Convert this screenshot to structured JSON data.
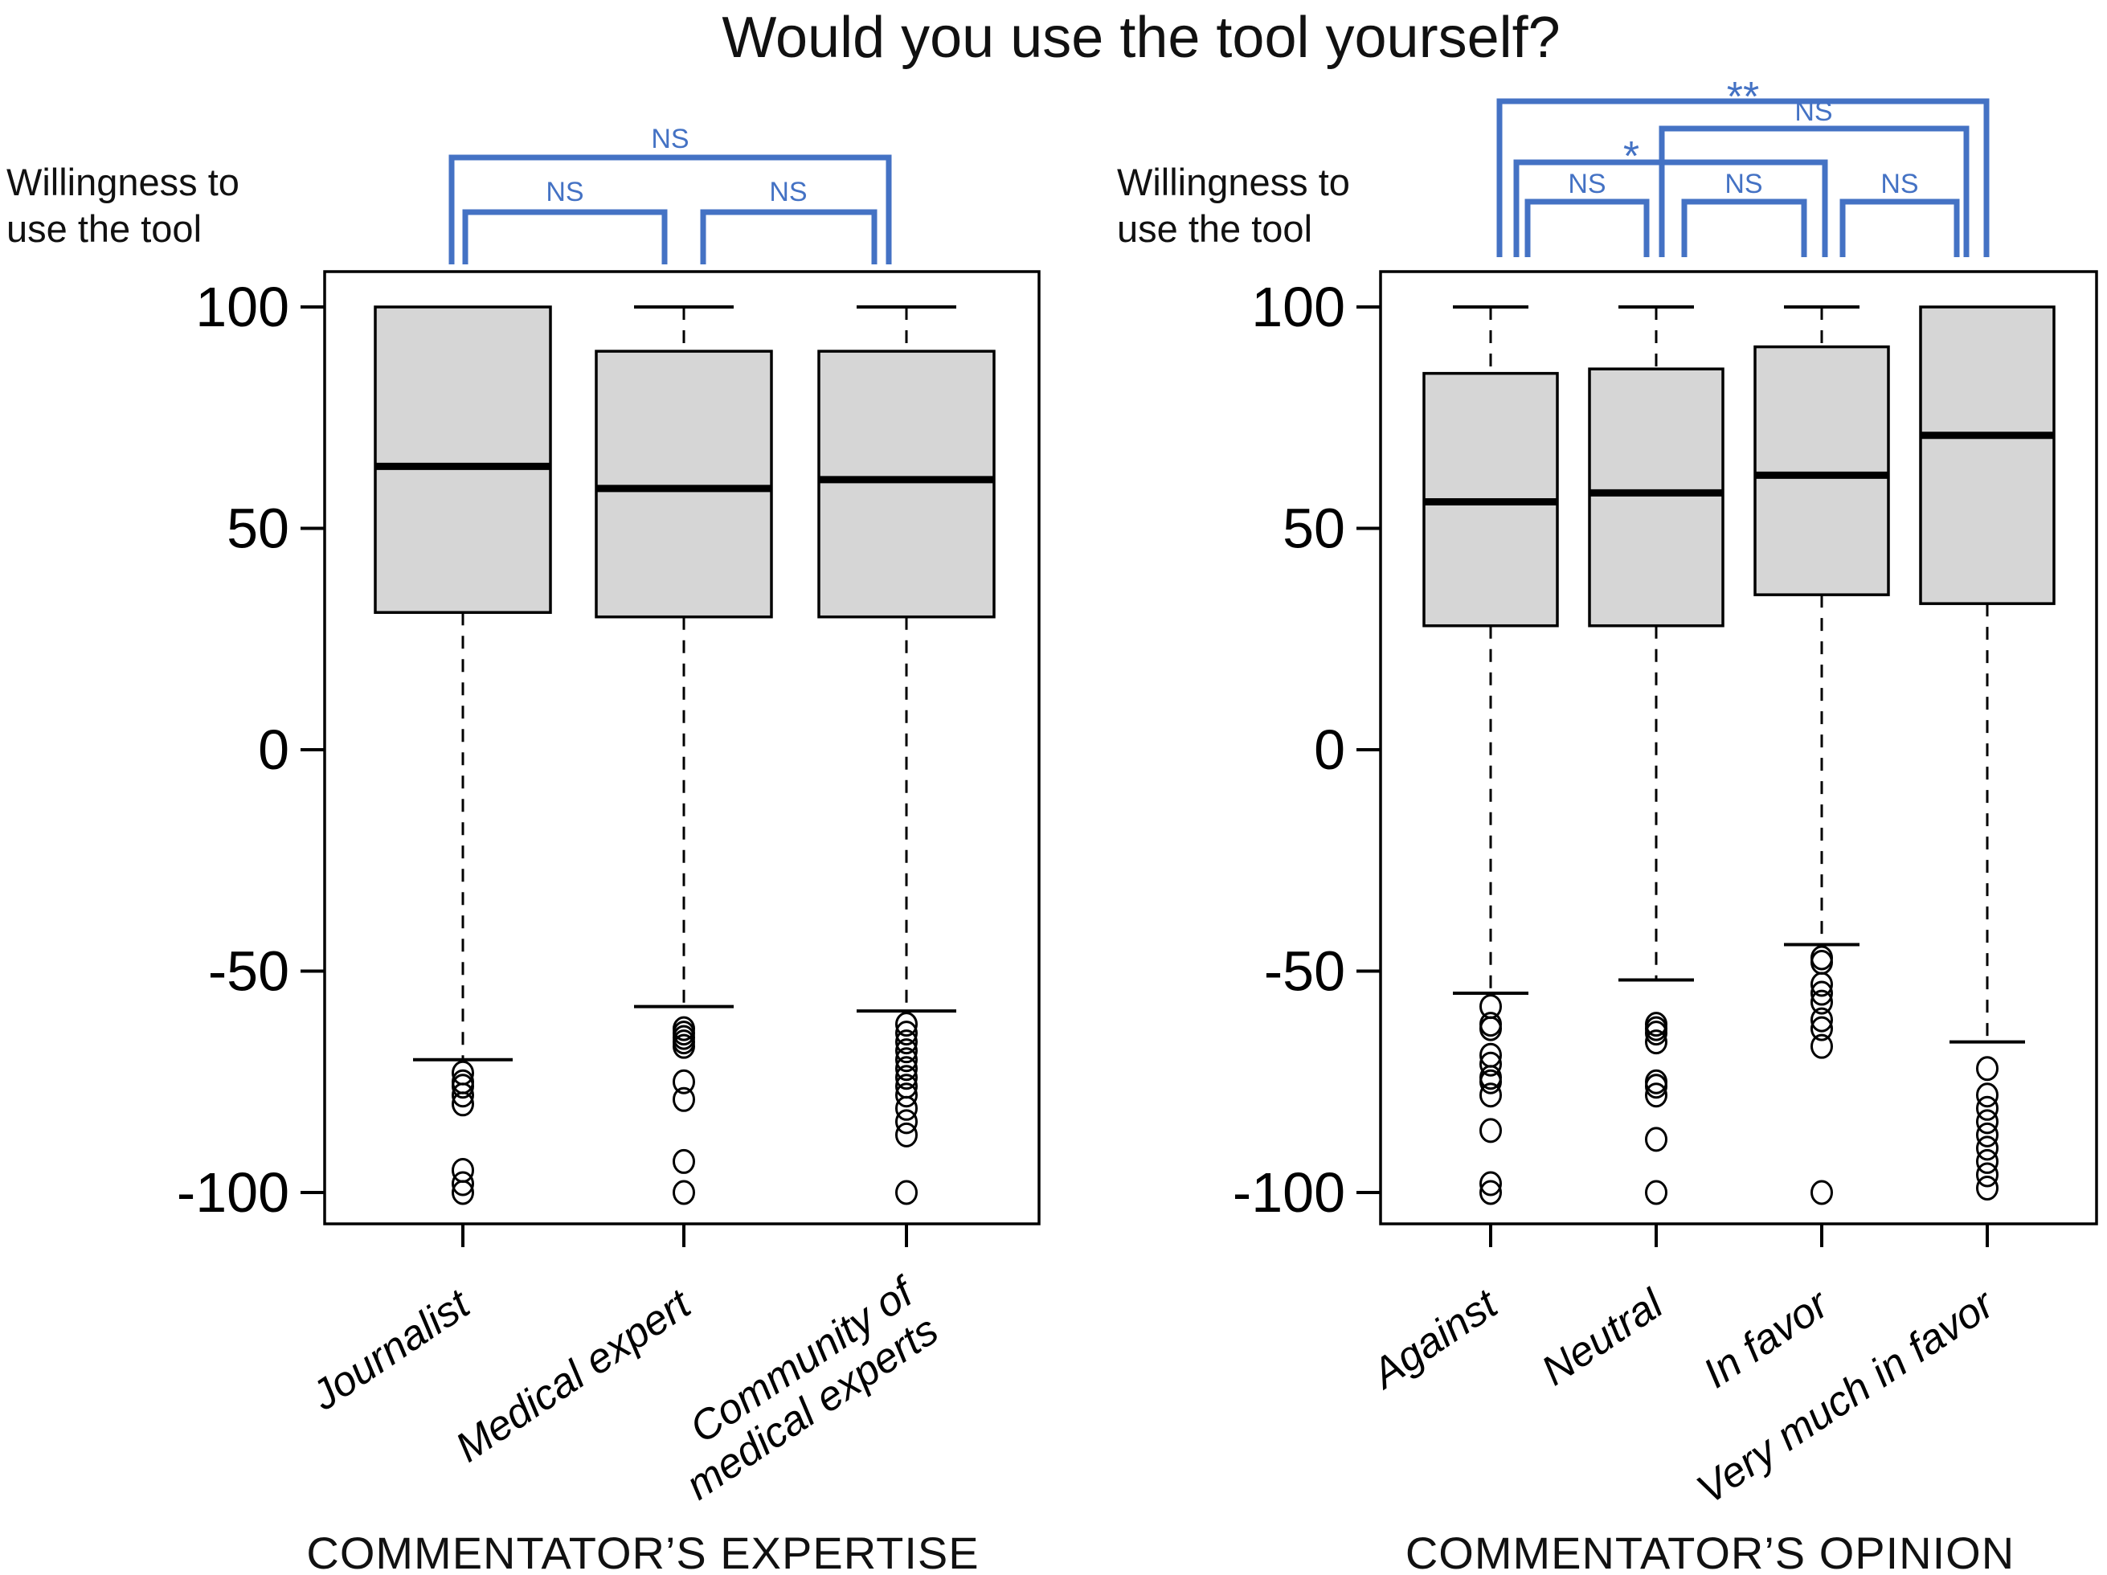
{
  "colors": {
    "bracket_blue": "#4472C4",
    "box_fill": "#D6D6D6",
    "line_black": "#000000"
  },
  "chart_data": {
    "type": "boxplot",
    "title": "Would you use the tool yourself?",
    "y_axis_label": [
      "Willingness to",
      "use the tool"
    ],
    "y_ticks": [
      100,
      50,
      0,
      -50,
      -100
    ],
    "ylim": [
      -107,
      107
    ],
    "grid": false,
    "panels": [
      {
        "id": "expertise",
        "axis_title": "COMMENTATOR’S EXPERTISE",
        "categories": [
          [
            "Journalist"
          ],
          [
            "Medical expert"
          ],
          [
            "Community of",
            "medical experts"
          ]
        ],
        "boxes": [
          {
            "category": "Journalist",
            "q1": 31,
            "median": 64,
            "q3": 100,
            "whisker_low": -70,
            "whisker_high": 100,
            "outliers": [
              -73,
              -75,
              -76,
              -78,
              -80,
              -95,
              -98,
              -100
            ]
          },
          {
            "category": "Medical expert",
            "q1": 30,
            "median": 59,
            "q3": 90,
            "whisker_low": -58,
            "whisker_high": 100,
            "outliers": [
              -63,
              -64,
              -65,
              -66,
              -67,
              -75,
              -79,
              -93,
              -100
            ]
          },
          {
            "category": "Community of medical experts",
            "q1": 30,
            "median": 61,
            "q3": 90,
            "whisker_low": -59,
            "whisker_high": 100,
            "outliers": [
              -62,
              -64,
              -66,
              -68,
              -70,
              -72,
              -74,
              -76,
              -78,
              -81,
              -84,
              -87,
              -100
            ]
          }
        ],
        "significance_brackets": [
          {
            "group_a": "Journalist",
            "group_b": "Community of medical experts",
            "from": 0,
            "to": 2,
            "label": "NS"
          },
          {
            "group_a": "Journalist",
            "group_b": "Medical expert",
            "from": 0,
            "to": 1,
            "label": "NS"
          },
          {
            "group_a": "Medical expert",
            "group_b": "Community of medical experts",
            "from": 1,
            "to": 2,
            "label": "NS"
          }
        ]
      },
      {
        "id": "opinion",
        "axis_title": "COMMENTATOR’S OPINION",
        "categories": [
          [
            "Against"
          ],
          [
            "Neutral"
          ],
          [
            "In favor"
          ],
          [
            "Very much in favor"
          ]
        ],
        "boxes": [
          {
            "category": "Against",
            "q1": 28,
            "median": 56,
            "q3": 85,
            "whisker_low": -55,
            "whisker_high": 100,
            "outliers": [
              -58,
              -62,
              -63,
              -69,
              -71,
              -74,
              -75,
              -78,
              -86,
              -98,
              -100
            ]
          },
          {
            "category": "Neutral",
            "q1": 28,
            "median": 58,
            "q3": 86,
            "whisker_low": -52,
            "whisker_high": 100,
            "outliers": [
              -62,
              -63,
              -64,
              -66,
              -75,
              -76,
              -78,
              -88,
              -100
            ]
          },
          {
            "category": "In favor",
            "q1": 35,
            "median": 62,
            "q3": 91,
            "whisker_low": -44,
            "whisker_high": 100,
            "outliers": [
              -47,
              -48,
              -53,
              -55,
              -57,
              -61,
              -63,
              -67,
              -100
            ]
          },
          {
            "category": "Very much in favor",
            "q1": 33,
            "median": 71,
            "q3": 100,
            "whisker_low": -66,
            "whisker_high": 100,
            "outliers": [
              -72,
              -78,
              -81,
              -84,
              -87,
              -90,
              -93,
              -96,
              -99
            ]
          }
        ],
        "significance_brackets": [
          {
            "group_a": "Against",
            "group_b": "Very much in favor",
            "from": 0,
            "to": 3,
            "label": "**"
          },
          {
            "group_a": "Neutral",
            "group_b": "Very much in favor",
            "from": 1,
            "to": 3,
            "label": "NS"
          },
          {
            "group_a": "Against",
            "group_b": "In favor",
            "from": 0,
            "to": 2,
            "label": "*"
          },
          {
            "group_a": "Against",
            "group_b": "Neutral",
            "from": 0,
            "to": 1,
            "label": "NS"
          },
          {
            "group_a": "Neutral",
            "group_b": "In favor",
            "from": 1,
            "to": 2,
            "label": "NS"
          },
          {
            "group_a": "In favor",
            "group_b": "Very much in favor",
            "from": 2,
            "to": 3,
            "label": "NS"
          }
        ]
      }
    ]
  }
}
